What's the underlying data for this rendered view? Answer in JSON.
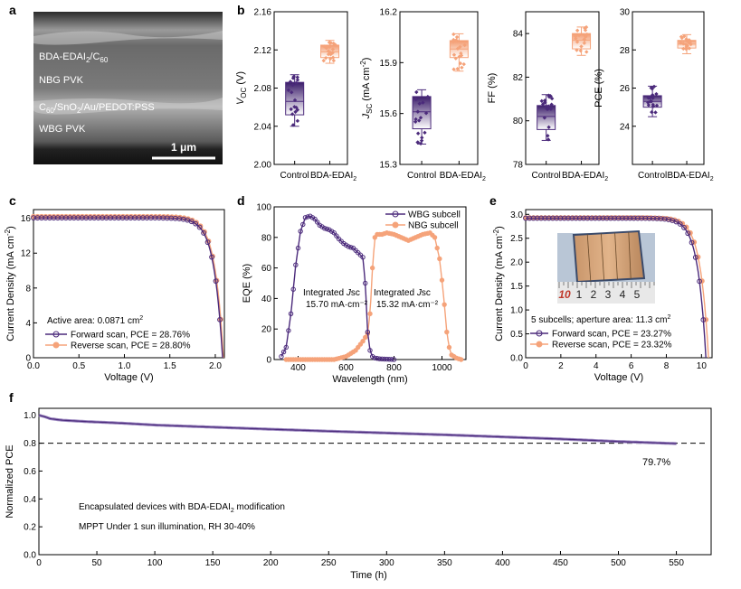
{
  "colors": {
    "control": "#4b2a7b",
    "edai": "#f5a37a",
    "forward": "#4b2a7b",
    "reverse": "#f5a37a",
    "axis": "#000000"
  },
  "panel_labels": {
    "a": "a",
    "b": "b",
    "c": "c",
    "d": "d",
    "e": "e",
    "f": "f"
  },
  "panel_a": {
    "layers": [
      "BDA-EDAI",
      "2",
      "/C",
      "60",
      "NBG PVK",
      "C",
      "60",
      "/SnO",
      "2",
      "/Au/PEDOT:PSS",
      "WBG PVK"
    ],
    "scale_bar": "1 μm"
  },
  "chart_data": [
    {
      "id": "b1",
      "type": "box",
      "ylabel_main": "V",
      "ylabel_sub": "OC",
      "ylabel_unit": " (V)",
      "ylim": [
        2.0,
        2.16
      ],
      "yticks": [
        "2.00",
        "2.04",
        "2.08",
        "2.12",
        "2.16"
      ],
      "categories": [
        "Control",
        "BDA-EDAI",
        "2"
      ],
      "series": [
        {
          "name": "Control",
          "q1": 2.052,
          "median": 2.066,
          "q3": 2.086,
          "whisker_low": 2.04,
          "whisker_high": 2.094,
          "mean": 2.07
        },
        {
          "name": "BDA-EDAI2",
          "q1": 2.112,
          "median": 2.118,
          "q3": 2.125,
          "whisker_low": 2.106,
          "whisker_high": 2.13,
          "mean": 2.118
        }
      ]
    },
    {
      "id": "b2",
      "type": "box",
      "ylabel_main": "J",
      "ylabel_sub": "SC",
      "ylabel_unit": " (mA cm",
      "ylim": [
        15.3,
        16.2
      ],
      "yticks": [
        "15.3",
        "15.6",
        "15.9",
        "16.2"
      ],
      "categories": [
        "Control",
        "BDA-EDAI",
        "2"
      ],
      "series": [
        {
          "name": "Control",
          "q1": 15.51,
          "median": 15.61,
          "q3": 15.7,
          "whisker_low": 15.42,
          "whisker_high": 15.74,
          "mean": 15.61
        },
        {
          "name": "BDA-EDAI2",
          "q1": 15.93,
          "median": 15.98,
          "q3": 16.03,
          "whisker_low": 15.85,
          "whisker_high": 16.07,
          "mean": 15.98
        }
      ]
    },
    {
      "id": "b3",
      "type": "box",
      "ylabel_main": "FF (%)",
      "ylabel_sub": "",
      "ylabel_unit": "",
      "ylim": [
        78,
        85
      ],
      "yticks": [
        "78",
        "80",
        "82",
        "84"
      ],
      "categories": [
        "Control",
        "BDA-EDAI",
        "2"
      ],
      "series": [
        {
          "name": "Control",
          "q1": 79.6,
          "median": 80.2,
          "q3": 80.7,
          "whisker_low": 79.1,
          "whisker_high": 81.2,
          "mean": 80.2
        },
        {
          "name": "BDA-EDAI2",
          "q1": 83.3,
          "median": 83.7,
          "q3": 84.0,
          "whisker_low": 83.0,
          "whisker_high": 84.3,
          "mean": 83.7
        }
      ]
    },
    {
      "id": "b4",
      "type": "box",
      "ylabel_main": "PCE (%)",
      "ylabel_sub": "",
      "ylabel_unit": "",
      "ylim": [
        22,
        30
      ],
      "yticks": [
        "24",
        "26",
        "28",
        "30"
      ],
      "categories": [
        "Control",
        "BDA-EDAI",
        "2"
      ],
      "series": [
        {
          "name": "Control",
          "q1": 25.0,
          "median": 25.3,
          "q3": 25.6,
          "whisker_low": 24.5,
          "whisker_high": 26.1,
          "mean": 25.3
        },
        {
          "name": "BDA-EDAI2",
          "q1": 28.1,
          "median": 28.3,
          "q3": 28.5,
          "whisker_low": 27.8,
          "whisker_high": 28.8,
          "mean": 28.3
        }
      ]
    },
    {
      "id": "c",
      "type": "line",
      "xlabel": "Voltage (V)",
      "ylabel": "Current Density (mA cm",
      "xlim": [
        0,
        2.1
      ],
      "ylim": [
        0,
        17
      ],
      "xticks": [
        "0.0",
        "0.5",
        "1.0",
        "1.5",
        "2.0"
      ],
      "yticks": [
        "0",
        "4",
        "8",
        "12",
        "16"
      ],
      "annotation": "Active area: 0.0871 cm",
      "annotation_sup": "2",
      "legend": [
        "Forward scan, PCE = 28.76%",
        "Reverse scan, PCE = 28.80%"
      ],
      "jsc": [
        16.05,
        16.2
      ],
      "voc": [
        2.08,
        2.09
      ]
    },
    {
      "id": "d",
      "type": "line",
      "xlabel": "Wavelength (nm)",
      "ylabel": "EQE (%)",
      "xlim": [
        300,
        1100
      ],
      "ylim": [
        0,
        100
      ],
      "xticks": [
        "400",
        "600",
        "800",
        "1000"
      ],
      "yticks": [
        "0",
        "20",
        "40",
        "60",
        "80",
        "100"
      ],
      "legend": [
        "WBG subcell",
        "NBG subcell"
      ],
      "annotations": [
        {
          "line1": "Integrated ",
          "italic": "J",
          "italic2": "sc",
          "line2": "15.70 mA·cm⁻²"
        },
        {
          "line1": "Integrated ",
          "italic": "J",
          "italic2": "sc",
          "line2": "15.32 mA·cm⁻²"
        }
      ],
      "wbg": {
        "x": [
          330,
          350,
          370,
          390,
          410,
          430,
          450,
          470,
          490,
          510,
          530,
          550,
          570,
          590,
          610,
          630,
          650,
          670,
          680,
          690,
          700,
          710,
          720,
          740,
          760,
          780,
          800
        ],
        "y": [
          2,
          8,
          30,
          62,
          84,
          93,
          94,
          92,
          88,
          86,
          85,
          83,
          79,
          76,
          74,
          73,
          70,
          67,
          50,
          18,
          6,
          2,
          1,
          0.5,
          0.3,
          0.2,
          0
        ]
      },
      "nbg": {
        "x": [
          350,
          450,
          550,
          600,
          640,
          670,
          690,
          700,
          710,
          720,
          730,
          750,
          770,
          800,
          830,
          860,
          890,
          920,
          950,
          970,
          990,
          1000,
          1010,
          1020,
          1030,
          1040,
          1060,
          1080
        ],
        "y": [
          0,
          0,
          0,
          2,
          6,
          12,
          17,
          30,
          60,
          80,
          82,
          82,
          83,
          82,
          80,
          78,
          80,
          82,
          83,
          80,
          66,
          52,
          36,
          18,
          8,
          3,
          1,
          0
        ]
      }
    },
    {
      "id": "e",
      "type": "line",
      "xlabel": "Voltage (V)",
      "ylabel": "Current Density (mA cm",
      "xlim": [
        0,
        10.6
      ],
      "ylim": [
        0,
        3.1
      ],
      "xticks": [
        "0",
        "2",
        "4",
        "6",
        "8",
        "10"
      ],
      "yticks": [
        "0.0",
        "0.5",
        "1.0",
        "1.5",
        "2.0",
        "2.5",
        "3.0"
      ],
      "annotation": "5 subcells; aperture area: 11.3 cm",
      "annotation_sup": "2",
      "legend": [
        "Forward scan, PCE = 23.27%",
        "Reverse scan, PCE = 23.32%"
      ],
      "inset_ruler": [
        "10",
        "1",
        "2",
        "3",
        "4",
        "5"
      ],
      "jsc": [
        2.92,
        2.93
      ],
      "voc": [
        10.25,
        10.4
      ]
    },
    {
      "id": "f",
      "type": "line",
      "xlabel": "Time (h)",
      "ylabel": "Normalized PCE",
      "xlim": [
        0,
        580
      ],
      "ylim": [
        0,
        1.05
      ],
      "xticks": [
        "0",
        "50",
        "100",
        "150",
        "200",
        "250",
        "300",
        "350",
        "400",
        "450",
        "500",
        "550"
      ],
      "yticks": [
        "0.0",
        "0.2",
        "0.4",
        "0.6",
        "0.8",
        "1.0"
      ],
      "reference_line": 0.8,
      "end_label": "79.7%",
      "annotation1_a": "Encapsulated devices with BDA-EDAI",
      "annotation1_sub": "2",
      "annotation1_b": " modification",
      "annotation2": "MPPT Under 1 sun illumination, RH 30-40%",
      "x": [
        0,
        5,
        10,
        20,
        40,
        60,
        80,
        100,
        150,
        200,
        250,
        300,
        350,
        400,
        450,
        500,
        550
      ],
      "y": [
        1.0,
        0.99,
        0.975,
        0.965,
        0.955,
        0.948,
        0.94,
        0.93,
        0.915,
        0.9,
        0.886,
        0.873,
        0.86,
        0.845,
        0.83,
        0.812,
        0.797
      ]
    }
  ]
}
